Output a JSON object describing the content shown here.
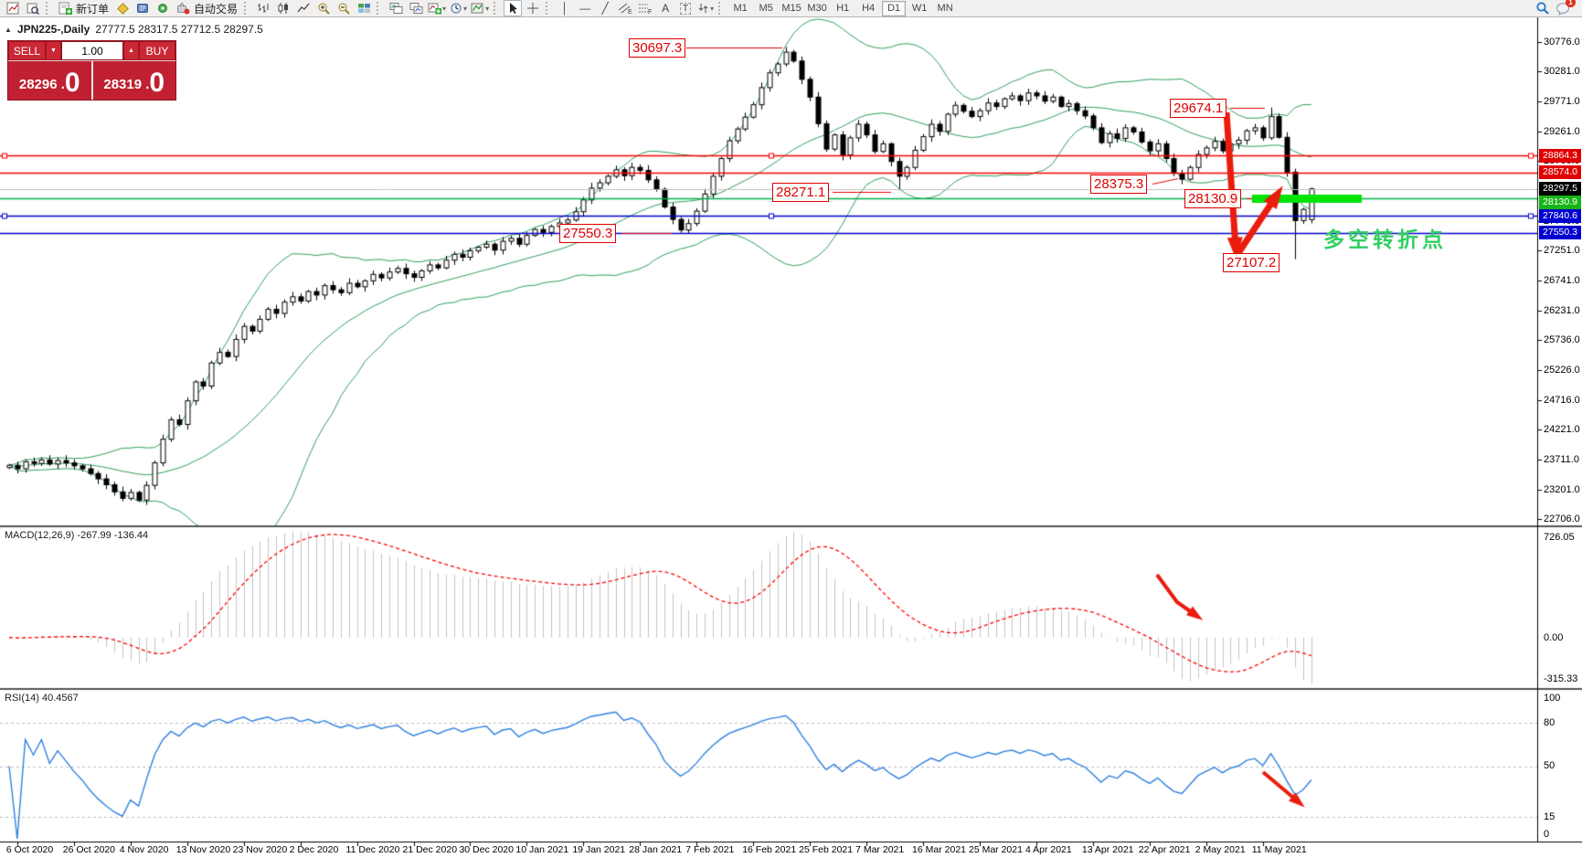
{
  "toolbar": {
    "new_order_label": "新订单",
    "autotrading_label": "自动交易",
    "timeframes": [
      "M1",
      "M5",
      "M15",
      "M30",
      "H1",
      "H4",
      "D1",
      "W1",
      "MN"
    ],
    "active_timeframe": "D1",
    "notification_count": "1",
    "text_tool_label": "A",
    "label_tool_label": "T",
    "channel_tool_label": "E",
    "fibo_tool_label": "F"
  },
  "chart_header": {
    "collapse_glyph": "▲",
    "symbol": "JPN225-,Daily",
    "ohlc": "27777.5 28317.5 27712.5 28297.5"
  },
  "trade_panel": {
    "sell_label": "SELL",
    "buy_label": "BUY",
    "volume": "1.00",
    "sell_price_main": "28296 .",
    "sell_price_big": "0",
    "buy_price_main": "28319 .",
    "buy_price_big": "0"
  },
  "indicators": {
    "macd_label": "MACD(12,26,9) -267.99 -136.44",
    "rsi_label": "RSI(14) 40.4567"
  },
  "axes": {
    "price_ticks": [
      "30776.0",
      "30281.0",
      "29771.0",
      "29261.0",
      "28766.0",
      "27746.0",
      "27251.0",
      "26741.0",
      "26231.0",
      "25736.0",
      "25226.0",
      "24716.0",
      "24221.0",
      "23711.0",
      "23201.0",
      "22706.0"
    ],
    "macd_ticks": [
      "726.05",
      "0.00",
      "-315.33"
    ],
    "rsi_ticks": [
      "100",
      "80",
      "50",
      "15",
      "0"
    ],
    "rsi_levels": [
      80,
      50,
      15
    ],
    "dates": [
      "6 Oct 2020",
      "26 Oct 2020",
      "4 Nov 2020",
      "13 Nov 2020",
      "23 Nov 2020",
      "2 Dec 2020",
      "11 Dec 2020",
      "21 Dec 2020",
      "30 Dec 2020",
      "10 Jan 2021",
      "19 Jan 2021",
      "28 Jan 2021",
      "7 Feb 2021",
      "16 Feb 2021",
      "25 Feb 2021",
      "7 Mar 2021",
      "16 Mar 2021",
      "25 Mar 2021",
      "4 Apr 2021",
      "13 Apr 2021",
      "22 Apr 2021",
      "2 May 2021",
      "11 May 2021"
    ]
  },
  "price_labels": [
    {
      "text": "28864.3",
      "bg": "#e00000",
      "price": 28864.3
    },
    {
      "text": "28574.0",
      "bg": "#e00000",
      "price": 28574.0
    },
    {
      "text": "28297.5",
      "bg": "#000000",
      "price": 28297.5
    },
    {
      "text": "28130.9",
      "bg": "#17b517",
      "price": 28130.9
    },
    {
      "text": "27840.6",
      "bg": "#0000d0",
      "price": 27840.6
    },
    {
      "text": "27550.3",
      "bg": "#0000d0",
      "price": 27550.3
    }
  ],
  "hlines": [
    {
      "price": 28864.3,
      "color": "#ff0000",
      "handles": true
    },
    {
      "price": 28574.0,
      "color": "#ff0000",
      "handles": false
    },
    {
      "price": 28297.5,
      "color": "#c0c0c0",
      "handles": false
    },
    {
      "price": 28130.9,
      "color": "#00b050",
      "handles": false
    },
    {
      "price": 27840.6,
      "color": "#0000cc",
      "handles": true
    },
    {
      "price": 27550.3,
      "color": "#0000cc",
      "handles": false
    }
  ],
  "annotations": {
    "callouts": [
      {
        "text": "30697.3"
      },
      {
        "text": "29674.1"
      },
      {
        "text": "28271.1"
      },
      {
        "text": "28375.3"
      },
      {
        "text": "28130.9"
      },
      {
        "text": "27550.3"
      },
      {
        "text": "27107.2"
      }
    ],
    "note_text": "多空转折点",
    "note_color": "#2fd060",
    "highlight_bar": {
      "price": 28130.9,
      "color": "#00e408"
    }
  },
  "chart_data": {
    "type": "candlestick",
    "symbol": "JPN225",
    "timeframe": "Daily",
    "indicators": {
      "bollinger": "20,2",
      "macd": "12,26,9",
      "rsi": "14"
    },
    "first_open": 23580,
    "closes": [
      23620,
      23560,
      23680,
      23650,
      23710,
      23640,
      23700,
      23660,
      23610,
      23560,
      23480,
      23390,
      23290,
      23170,
      23060,
      23160,
      23030,
      23280,
      23660,
      24060,
      24390,
      24310,
      24710,
      25030,
      24960,
      25350,
      25530,
      25460,
      25750,
      25970,
      25890,
      26090,
      26260,
      26190,
      26380,
      26470,
      26400,
      26560,
      26500,
      26660,
      26590,
      26540,
      26700,
      26640,
      26740,
      26850,
      26790,
      26890,
      26950,
      26860,
      26800,
      26910,
      27010,
      26960,
      27090,
      27190,
      27140,
      27250,
      27310,
      27360,
      27260,
      27410,
      27460,
      27360,
      27510,
      27610,
      27560,
      27660,
      27720,
      27770,
      27910,
      28110,
      28310,
      28400,
      28510,
      28620,
      28520,
      28660,
      28610,
      28450,
      28290,
      27990,
      27780,
      27600,
      27710,
      27920,
      28210,
      28510,
      28810,
      29110,
      29310,
      29510,
      29720,
      30010,
      30260,
      30410,
      30610,
      30460,
      30150,
      29850,
      29400,
      28970,
      29210,
      28870,
      29160,
      29390,
      29210,
      28930,
      29060,
      28760,
      28510,
      28660,
      28950,
      29180,
      29390,
      29270,
      29560,
      29710,
      29610,
      29520,
      29620,
      29750,
      29690,
      29820,
      29870,
      29790,
      29920,
      29870,
      29780,
      29850,
      29690,
      29740,
      29620,
      29530,
      29330,
      29080,
      29230,
      29150,
      29330,
      29260,
      29090,
      28940,
      29060,
      28810,
      28560,
      28460,
      28660,
      28880,
      28990,
      29100,
      28940,
      29060,
      29120,
      29280,
      29330,
      29160,
      29520,
      29170,
      28580,
      27760,
      27950,
      28297.5
    ],
    "overrides": {
      "83": {
        "l": 27556
      },
      "96": {
        "h": 30697.3
      },
      "110": {
        "l": 28271.1
      },
      "145": {
        "l": 28375.3
      },
      "156": {
        "h": 29674.1
      },
      "159": {
        "l": 27107.2
      }
    },
    "last_candle": [
      27777.5,
      28317.5,
      27712.5,
      28297.5
    ],
    "macd_current": -267.99,
    "macd_signal_current": -136.44,
    "rsi_current": 40.4567
  }
}
